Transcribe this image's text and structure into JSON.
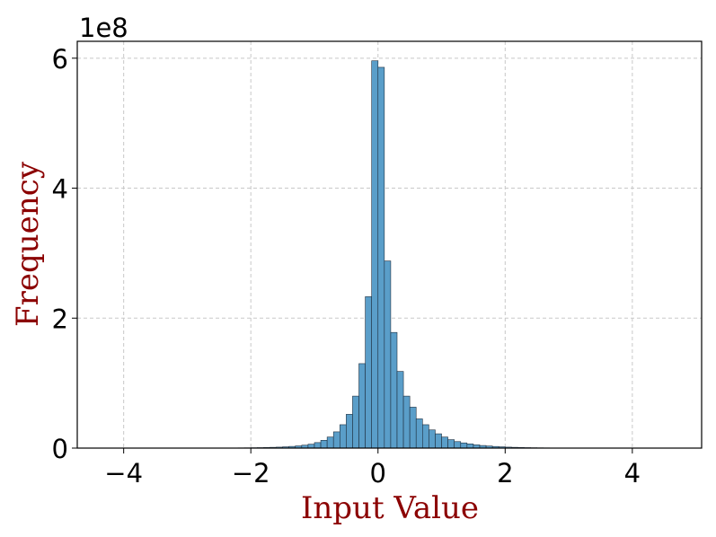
{
  "chart_data": {
    "type": "histogram",
    "x_label": "Input Value",
    "y_label": "Frequency",
    "y_offset_label": "1e8",
    "bins": [
      -4.7,
      -4.6,
      -4.5,
      -4.4,
      -4.3,
      -4.2,
      -4.1,
      -4.0,
      -3.9,
      -3.8,
      -3.7,
      -3.6,
      -3.5,
      -3.4,
      -3.3,
      -3.2,
      -3.1,
      -3.0,
      -2.9,
      -2.8,
      -2.7,
      -2.6,
      -2.5,
      -2.4,
      -2.3,
      -2.2,
      -2.1,
      -2.0,
      -1.9,
      -1.8,
      -1.7,
      -1.6,
      -1.5,
      -1.4,
      -1.3,
      -1.2,
      -1.1,
      -1.0,
      -0.9,
      -0.8,
      -0.7,
      -0.6,
      -0.5,
      -0.4,
      -0.3,
      -0.2,
      -0.1,
      0.0,
      0.1,
      0.2,
      0.3,
      0.4,
      0.5,
      0.6,
      0.7,
      0.8,
      0.9,
      1.0,
      1.1,
      1.2,
      1.3,
      1.4,
      1.5,
      1.6,
      1.7,
      1.8,
      1.9,
      2.0,
      2.1,
      2.2,
      2.3,
      2.4,
      2.5,
      2.6,
      2.7,
      2.8,
      2.9,
      3.0,
      3.1,
      3.2,
      3.3,
      3.4,
      3.5,
      3.6,
      3.7,
      3.8,
      3.9,
      4.0,
      4.1,
      4.2,
      4.3,
      4.4,
      4.5,
      4.6,
      4.7,
      4.8,
      4.9,
      5.0
    ],
    "values": [
      1000,
      1000,
      1000,
      2000,
      2000,
      3000,
      4000,
      5000,
      6000,
      8000,
      10000,
      12000,
      15000,
      20000,
      25000,
      30000,
      40000,
      50000,
      60000,
      80000,
      100000,
      130000,
      170000,
      210000,
      270000,
      340000,
      430000,
      550000,
      700000,
      900000,
      1200000,
      1500000,
      2000000,
      2600000,
      3400000,
      4500000,
      6000000,
      8500000,
      12000000,
      17000000,
      25000000,
      36000000,
      52000000,
      80000000,
      130000000,
      233000000,
      596000000,
      586000000,
      288000000,
      178000000,
      118000000,
      80000000,
      63000000,
      45000000,
      36000000,
      28000000,
      22000000,
      17000000,
      13000000,
      10000000,
      8000000,
      6500000,
      5000000,
      4000000,
      3200000,
      2500000,
      2000000,
      1500000,
      1200000,
      900000,
      700000,
      550000,
      430000,
      340000,
      270000,
      210000,
      170000,
      130000,
      100000,
      80000,
      60000,
      50000,
      40000,
      30000,
      25000,
      20000,
      15000,
      12000,
      10000,
      8000,
      6000,
      5000,
      4000,
      3000,
      2000,
      2000,
      1000
    ],
    "color": "#5a9ec9",
    "edgecolor": "#1f2f3f",
    "xlim": [
      -4.73,
      5.09
    ],
    "ylim": [
      0,
      626000000
    ],
    "xticks": [
      {
        "value": -4,
        "label": "−4"
      },
      {
        "value": -2,
        "label": "−2"
      },
      0,
      2,
      4
    ],
    "yticks": [
      0,
      {
        "value": 200000000,
        "label": "2"
      },
      {
        "value": 400000000,
        "label": "4"
      },
      {
        "value": 600000000,
        "label": "6"
      }
    ],
    "grid": true
  }
}
